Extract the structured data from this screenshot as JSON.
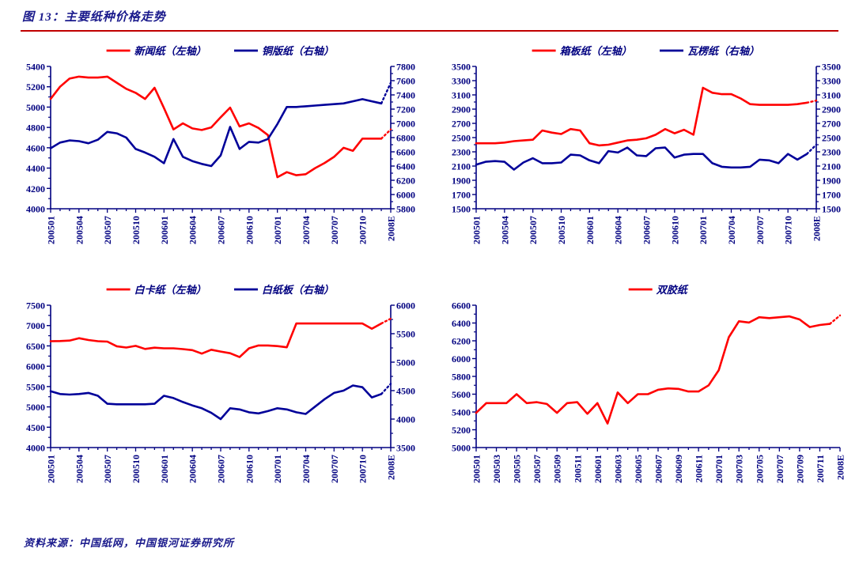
{
  "page": {
    "title": "图 13：主要纸种价格走势",
    "footer_source": "资料来源：中国纸网，中国银河证券研究所",
    "colors": {
      "red": "#FF0000",
      "blue": "#000099",
      "axis": "#000080",
      "title": "#1A1A8C",
      "rule": "#C00000"
    }
  },
  "chart_data": [
    {
      "id": "newsprint-coated",
      "position": "top-left",
      "type": "line",
      "x_label_every": 3,
      "x_tick_labels": [
        "200501",
        "200504",
        "200507",
        "200510",
        "200601",
        "200604",
        "200607",
        "200610",
        "200701",
        "200704",
        "200707",
        "200710",
        "2008E"
      ],
      "left_axis": {
        "min": 4000,
        "max": 5400,
        "step": 200
      },
      "right_axis": {
        "min": 5800,
        "max": 7800,
        "step": 200
      },
      "legend_position": "top-center",
      "series": [
        {
          "name": "新闻纸（左轴）",
          "axis": "left",
          "color": "#FF0000",
          "forecast_last": true,
          "values": [
            5080,
            5200,
            5280,
            5300,
            5290,
            5290,
            5300,
            5240,
            5180,
            5140,
            5080,
            5190,
            4990,
            4780,
            4840,
            4790,
            4775,
            4800,
            4900,
            4995,
            4810,
            4840,
            4795,
            4725,
            4310,
            4360,
            4330,
            4340,
            4400,
            4450,
            4510,
            4600,
            4570,
            4690,
            4690,
            4690,
            4780
          ]
        },
        {
          "name": "铜版纸（右轴）",
          "axis": "right",
          "color": "#000099",
          "forecast_last": true,
          "values": [
            6650,
            6730,
            6760,
            6750,
            6720,
            6770,
            6880,
            6860,
            6800,
            6640,
            6590,
            6530,
            6440,
            6780,
            6530,
            6470,
            6430,
            6400,
            6550,
            6950,
            6640,
            6740,
            6730,
            6780,
            6990,
            7230,
            7230,
            7240,
            7250,
            7260,
            7270,
            7280,
            7310,
            7340,
            7310,
            7280,
            7570
          ]
        }
      ]
    },
    {
      "id": "containerboard-corrugated",
      "position": "top-right",
      "type": "line",
      "x_label_every": 3,
      "x_tick_labels": [
        "200501",
        "200504",
        "200507",
        "200510",
        "200601",
        "200604",
        "200607",
        "200610",
        "200701",
        "200704",
        "200707",
        "200710",
        "2008E"
      ],
      "left_axis": {
        "min": 1500,
        "max": 3500,
        "step": 200
      },
      "right_axis": {
        "min": 1500,
        "max": 3500,
        "step": 200
      },
      "legend_position": "top-center",
      "series": [
        {
          "name": "箱板纸（左轴）",
          "axis": "left",
          "color": "#FF0000",
          "forecast_last": true,
          "values": [
            2420,
            2420,
            2420,
            2430,
            2450,
            2460,
            2470,
            2600,
            2570,
            2550,
            2620,
            2600,
            2420,
            2390,
            2400,
            2430,
            2460,
            2470,
            2490,
            2540,
            2620,
            2560,
            2610,
            2540,
            3200,
            3130,
            3110,
            3110,
            3050,
            2970,
            2960,
            2960,
            2960,
            2960,
            2970,
            2990,
            3020
          ]
        },
        {
          "name": "瓦楞纸（右轴）",
          "axis": "right",
          "color": "#000099",
          "forecast_last": true,
          "values": [
            2120,
            2160,
            2170,
            2160,
            2050,
            2150,
            2210,
            2140,
            2140,
            2150,
            2260,
            2250,
            2180,
            2140,
            2310,
            2290,
            2360,
            2250,
            2240,
            2350,
            2360,
            2220,
            2260,
            2270,
            2270,
            2140,
            2090,
            2080,
            2080,
            2090,
            2190,
            2180,
            2140,
            2270,
            2190,
            2270,
            2400
          ]
        }
      ]
    },
    {
      "id": "whitecard-whiteboard",
      "position": "bottom-left",
      "type": "line",
      "x_label_every": 3,
      "x_tick_labels": [
        "200501",
        "200504",
        "200507",
        "200510",
        "200601",
        "200604",
        "200607",
        "200610",
        "200701",
        "200704",
        "200707",
        "200710",
        "2008E"
      ],
      "left_axis": {
        "min": 4000,
        "max": 7500,
        "step": 500
      },
      "right_axis": {
        "min": 3500,
        "max": 6000,
        "step": 500
      },
      "legend_position": "top-center",
      "series": [
        {
          "name": "白卡纸（左轴）",
          "axis": "left",
          "color": "#FF0000",
          "forecast_last": true,
          "values": [
            6615,
            6620,
            6630,
            6690,
            6645,
            6615,
            6605,
            6490,
            6460,
            6500,
            6425,
            6455,
            6440,
            6440,
            6420,
            6395,
            6310,
            6405,
            6360,
            6320,
            6225,
            6440,
            6510,
            6510,
            6495,
            6465,
            7050,
            7050,
            7050,
            7050,
            7050,
            7050,
            7050,
            7050,
            6920,
            7050,
            7170
          ]
        },
        {
          "name": "白纸板（右轴）",
          "axis": "right",
          "color": "#000099",
          "forecast_last": true,
          "values": [
            4490,
            4440,
            4430,
            4440,
            4460,
            4410,
            4270,
            4260,
            4260,
            4260,
            4260,
            4270,
            4410,
            4370,
            4300,
            4240,
            4190,
            4110,
            4000,
            4190,
            4170,
            4120,
            4100,
            4140,
            4190,
            4170,
            4120,
            4090,
            4220,
            4350,
            4460,
            4500,
            4590,
            4560,
            4380,
            4440,
            4620
          ]
        }
      ]
    },
    {
      "id": "offset-paper",
      "position": "bottom-right",
      "type": "line",
      "x_label_every": 2,
      "x_tick_labels": [
        "200501",
        "200503",
        "200505",
        "200507",
        "200509",
        "200511",
        "200601",
        "200603",
        "200605",
        "200607",
        "200609",
        "200611",
        "200701",
        "200703",
        "200705",
        "200707",
        "200709",
        "200711",
        "2008E"
      ],
      "left_axis": {
        "min": 5000,
        "max": 6600,
        "step": 200
      },
      "right_axis": null,
      "legend_position": "top-center",
      "series": [
        {
          "name": "双胶纸",
          "axis": "left",
          "color": "#FF0000",
          "forecast_last": true,
          "values": [
            5390,
            5500,
            5500,
            5500,
            5600,
            5500,
            5510,
            5490,
            5390,
            5500,
            5510,
            5380,
            5500,
            5270,
            5620,
            5500,
            5600,
            5600,
            5650,
            5665,
            5660,
            5630,
            5630,
            5700,
            5870,
            6240,
            6420,
            6405,
            6465,
            6455,
            6465,
            6475,
            6440,
            6355,
            6378,
            6390,
            6485
          ]
        }
      ]
    }
  ]
}
